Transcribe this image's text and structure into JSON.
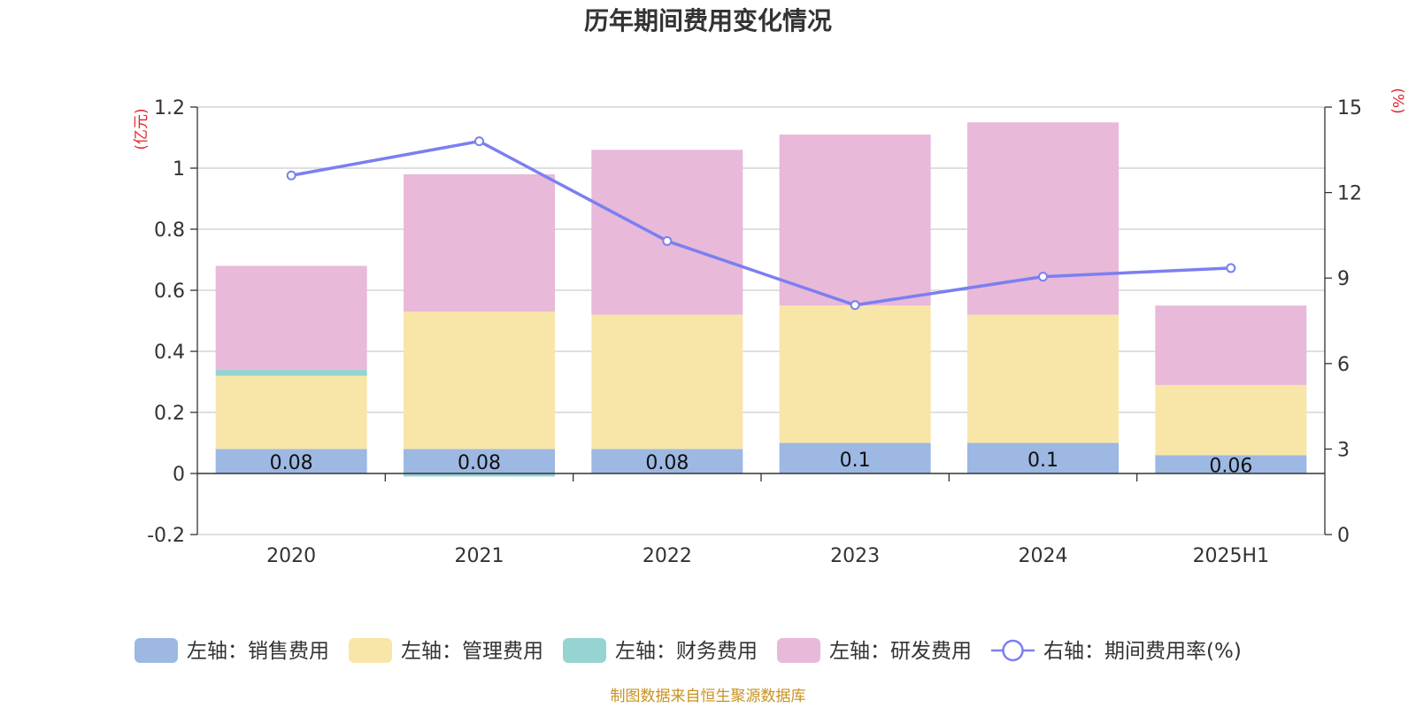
{
  "chart_data": {
    "type": "bar",
    "title": "历年期间费用变化情况",
    "categories": [
      "2020",
      "2021",
      "2022",
      "2023",
      "2024",
      "2025H1"
    ],
    "stacked": true,
    "left_axis": {
      "unit_label": "(亿元)",
      "ylim": [
        -0.2,
        1.2
      ],
      "ticks": [
        -0.2,
        0,
        0.2,
        0.4,
        0.6,
        0.8,
        1,
        1.2
      ],
      "tick_labels": [
        "-0.2",
        "0",
        "0.2",
        "0.4",
        "0.6",
        "0.8",
        "1",
        "1.2"
      ],
      "grid": true
    },
    "right_axis": {
      "unit_label": "(%)",
      "ylim": [
        0,
        15
      ],
      "ticks": [
        0,
        3,
        6,
        9,
        12,
        15
      ],
      "tick_labels": [
        "0",
        "3",
        "6",
        "9",
        "12",
        "15"
      ]
    },
    "series": [
      {
        "name": "左轴：销售费用",
        "type": "bar",
        "axis": "left",
        "color": "#9cb8e3",
        "values": [
          0.08,
          0.08,
          0.08,
          0.1,
          0.1,
          0.06
        ],
        "labels": [
          "0.08",
          "0.08",
          "0.08",
          "0.1",
          "0.1",
          "0.06"
        ]
      },
      {
        "name": "左轴：管理费用",
        "type": "bar",
        "axis": "left",
        "color": "#f8e6a8",
        "values": [
          0.24,
          0.45,
          0.44,
          0.45,
          0.42,
          0.23
        ]
      },
      {
        "name": "左轴：财务费用",
        "type": "bar",
        "axis": "left",
        "color": "#96d3d1",
        "values": [
          0.02,
          -0.01,
          0.0,
          0.0,
          0.0,
          0.0
        ]
      },
      {
        "name": "左轴：研发费用",
        "type": "bar",
        "axis": "left",
        "color": "#e8b9d9",
        "values": [
          0.34,
          0.45,
          0.54,
          0.56,
          0.63,
          0.26
        ]
      },
      {
        "name": "右轴：期间费用率(%)",
        "type": "line",
        "axis": "right",
        "color": "#7b7ff0",
        "values": [
          12.6,
          13.8,
          10.3,
          8.05,
          9.05,
          9.35
        ]
      }
    ],
    "legend": "bottom"
  },
  "source_note": "制图数据来自恒生聚源数据库"
}
